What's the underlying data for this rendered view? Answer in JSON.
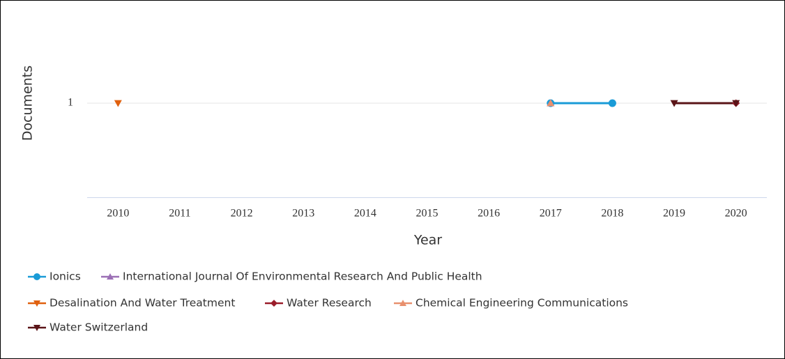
{
  "chart_data": {
    "type": "line",
    "x_label": "Year",
    "y_label": "Documents",
    "categories": [
      "2010",
      "2011",
      "2012",
      "2013",
      "2014",
      "2015",
      "2016",
      "2017",
      "2018",
      "2019",
      "2020"
    ],
    "ylim": [
      0,
      2
    ],
    "yticks": [
      1
    ],
    "grid": true,
    "series": [
      {
        "name": "Ionics",
        "color": "#1a9bd7",
        "marker": "circle",
        "values": [
          null,
          null,
          null,
          null,
          null,
          null,
          null,
          1,
          1,
          null,
          null
        ]
      },
      {
        "name": "International Journal Of Environmental Research And Public Health",
        "color": "#9b6fb5",
        "marker": "triangle",
        "values": [
          null,
          null,
          null,
          null,
          null,
          null,
          null,
          1,
          null,
          null,
          null
        ]
      },
      {
        "name": "Desalination And Water Treatment",
        "color": "#e0600e",
        "marker": "triangle-down",
        "values": [
          1,
          null,
          null,
          null,
          null,
          null,
          null,
          null,
          null,
          null,
          null
        ]
      },
      {
        "name": "Water Research",
        "color": "#9a1c2a",
        "marker": "diamond",
        "values": [
          null,
          null,
          null,
          null,
          null,
          null,
          null,
          null,
          null,
          null,
          1
        ]
      },
      {
        "name": "Chemical Engineering Communications",
        "color": "#e8906e",
        "marker": "triangle",
        "values": [
          null,
          null,
          null,
          null,
          null,
          null,
          null,
          1,
          null,
          null,
          null
        ]
      },
      {
        "name": "Water Switzerland",
        "color": "#5a1418",
        "marker": "triangle-down",
        "values": [
          null,
          null,
          null,
          null,
          null,
          null,
          null,
          null,
          null,
          1,
          1
        ]
      }
    ]
  }
}
